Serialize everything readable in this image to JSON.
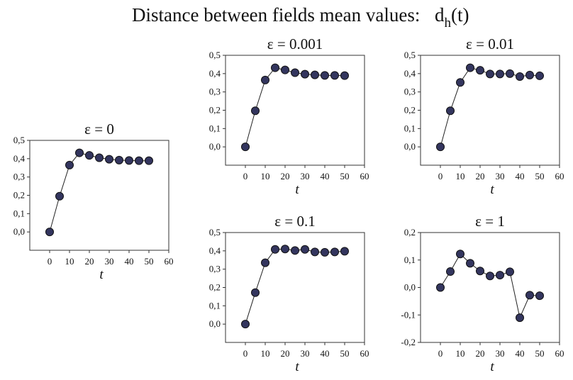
{
  "figure": {
    "title_text": "Distance between fields mean values:",
    "title_formula_base": "d",
    "title_formula_sub": "h",
    "title_formula_arg": "(t)"
  },
  "chart_data": [
    {
      "type": "line",
      "title": "ε = 0",
      "xlabel": "t",
      "ylabel": "",
      "xlim": [
        -10,
        60
      ],
      "ylim": [
        -0.1,
        0.5
      ],
      "xticks": [
        "0",
        "10",
        "20",
        "30",
        "40",
        "50",
        "60"
      ],
      "yticks": [
        "0,0",
        "0,1",
        "0,2",
        "0,3",
        "0,4",
        "0,5"
      ],
      "x": [
        0,
        5,
        10,
        15,
        20,
        25,
        30,
        35,
        40,
        45,
        50
      ],
      "values": [
        0.0,
        0.195,
        0.365,
        0.432,
        0.418,
        0.405,
        0.397,
        0.392,
        0.39,
        0.389,
        0.389
      ],
      "grid": false,
      "markers": true
    },
    {
      "type": "line",
      "title": "ε = 0.001",
      "xlabel": "t",
      "ylabel": "",
      "xlim": [
        -10,
        60
      ],
      "ylim": [
        -0.1,
        0.5
      ],
      "xticks": [
        "0",
        "10",
        "20",
        "30",
        "40",
        "50",
        "60"
      ],
      "yticks": [
        "0,0",
        "0,1",
        "0,2",
        "0,3",
        "0,4",
        "0,5"
      ],
      "x": [
        0,
        5,
        10,
        15,
        20,
        25,
        30,
        35,
        40,
        45,
        50
      ],
      "values": [
        0.0,
        0.197,
        0.365,
        0.432,
        0.42,
        0.405,
        0.397,
        0.393,
        0.39,
        0.39,
        0.389
      ],
      "grid": false,
      "markers": true
    },
    {
      "type": "line",
      "title": "ε = 0.01",
      "xlabel": "t",
      "ylabel": "",
      "xlim": [
        -10,
        60
      ],
      "ylim": [
        -0.1,
        0.5
      ],
      "xticks": [
        "0",
        "10",
        "20",
        "30",
        "40",
        "50",
        "60"
      ],
      "yticks": [
        "0,0",
        "0,1",
        "0,2",
        "0,3",
        "0,4",
        "0,5"
      ],
      "x": [
        0,
        5,
        10,
        15,
        20,
        25,
        30,
        35,
        40,
        45,
        50
      ],
      "values": [
        0.0,
        0.197,
        0.352,
        0.432,
        0.418,
        0.398,
        0.398,
        0.4,
        0.384,
        0.392,
        0.388
      ],
      "grid": false,
      "markers": true
    },
    {
      "type": "line",
      "title": "ε = 0.1",
      "xlabel": "t",
      "ylabel": "",
      "xlim": [
        -10,
        60
      ],
      "ylim": [
        -0.1,
        0.5
      ],
      "xticks": [
        "0",
        "10",
        "20",
        "30",
        "40",
        "50",
        "60"
      ],
      "yticks": [
        "0,0",
        "0,1",
        "0,2",
        "0,3",
        "0,4",
        "0,5"
      ],
      "x": [
        0,
        5,
        10,
        15,
        20,
        25,
        30,
        35,
        40,
        45,
        50
      ],
      "values": [
        0.0,
        0.172,
        0.335,
        0.408,
        0.41,
        0.402,
        0.408,
        0.394,
        0.392,
        0.394,
        0.398
      ],
      "grid": false,
      "markers": true
    },
    {
      "type": "line",
      "title": "ε = 1",
      "xlabel": "t",
      "ylabel": "",
      "xlim": [
        -10,
        60
      ],
      "ylim": [
        -0.2,
        0.2
      ],
      "xticks": [
        "0",
        "10",
        "20",
        "30",
        "40",
        "50",
        "60"
      ],
      "yticks": [
        "-0,2",
        "-0,1",
        "0,0",
        "0,1",
        "0,2"
      ],
      "x": [
        0,
        5,
        10,
        15,
        20,
        25,
        30,
        35,
        40,
        45,
        50
      ],
      "values": [
        0.0,
        0.058,
        0.122,
        0.088,
        0.06,
        0.042,
        0.045,
        0.057,
        -0.11,
        -0.028,
        -0.03
      ],
      "grid": false,
      "markers": true
    }
  ]
}
